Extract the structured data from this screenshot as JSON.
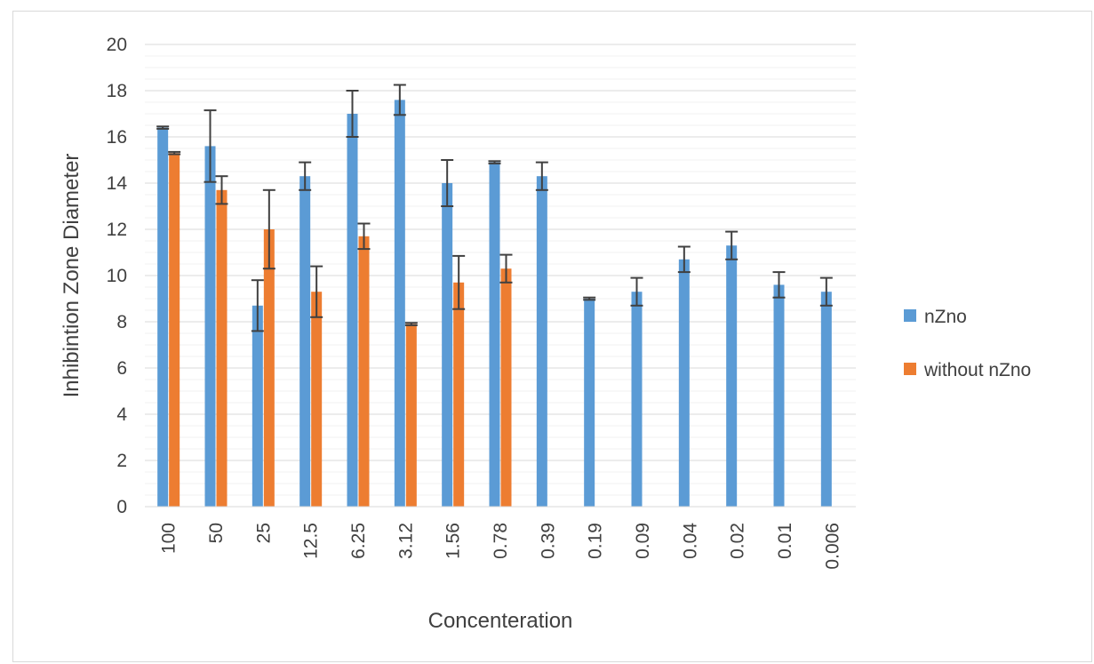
{
  "chart_data": {
    "type": "bar",
    "title": "",
    "xlabel": "Concenteration",
    "ylabel": "Inhibintion Zone Diameter",
    "ylim": [
      0,
      20
    ],
    "y_ticks": [
      "0",
      "2",
      "4",
      "6",
      "8",
      "10",
      "12",
      "14",
      "16",
      "18",
      "20"
    ],
    "grid": "major and minor horizontal",
    "legend_position": "right",
    "categories": [
      "100",
      "50",
      "25",
      "12.5",
      "6.25",
      "3.12",
      "1.56",
      "0.78",
      "0.39",
      "0.19",
      "0.09",
      "0.04",
      "0.02",
      "0.01",
      "0.006"
    ],
    "series": [
      {
        "name": "nZno",
        "color": "#5b9bd5",
        "values": [
          16.4,
          15.6,
          8.7,
          14.3,
          17.0,
          17.6,
          14.0,
          14.9,
          14.3,
          9.0,
          9.3,
          10.7,
          11.3,
          9.6,
          9.3
        ],
        "error": [
          0.05,
          1.55,
          1.1,
          0.6,
          1.0,
          0.65,
          1.0,
          0.05,
          0.6,
          0.05,
          0.6,
          0.55,
          0.6,
          0.55,
          0.6
        ]
      },
      {
        "name": "without nZno",
        "color": "#ed7d31",
        "values": [
          15.3,
          13.7,
          12.0,
          9.3,
          11.7,
          7.9,
          9.7,
          10.3,
          null,
          null,
          null,
          null,
          null,
          null,
          null
        ],
        "error": [
          0.05,
          0.6,
          1.7,
          1.1,
          0.55,
          0.05,
          1.15,
          0.6,
          null,
          null,
          null,
          null,
          null,
          null,
          null
        ]
      }
    ]
  }
}
